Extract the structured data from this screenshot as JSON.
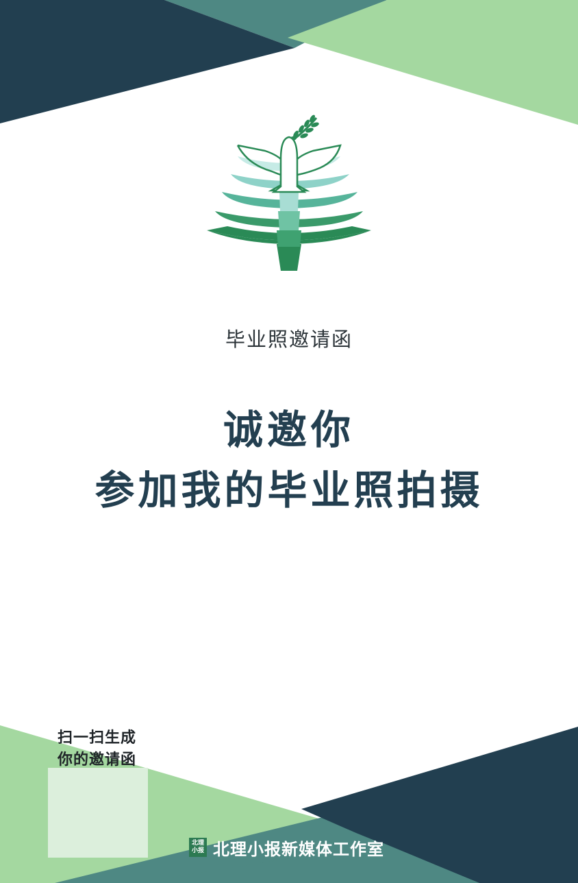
{
  "colors": {
    "navy": "#223f50",
    "teal": "#4e8883",
    "green": "#a4d8a0",
    "white": "#ffffff",
    "pale_green": "#dcefdc",
    "logo_dark_green": "#2a8a56",
    "logo_mid_green": "#4aae8a",
    "logo_light_teal": "#9dd8d2"
  },
  "icons": {
    "logo": "dove-tree-logo-icon",
    "badge": "beili-xiaobao-badge-icon"
  },
  "invitation": {
    "subtitle": "毕业照邀请函",
    "headline_line1": "诚邀你",
    "headline_line2": "参加我的毕业照拍摄"
  },
  "qr": {
    "line1": "扫一扫生成",
    "line2": "你的邀请函"
  },
  "footer": {
    "badge_line1": "北理",
    "badge_line2": "小报",
    "studio_name": "北理小报新媒体工作室"
  }
}
